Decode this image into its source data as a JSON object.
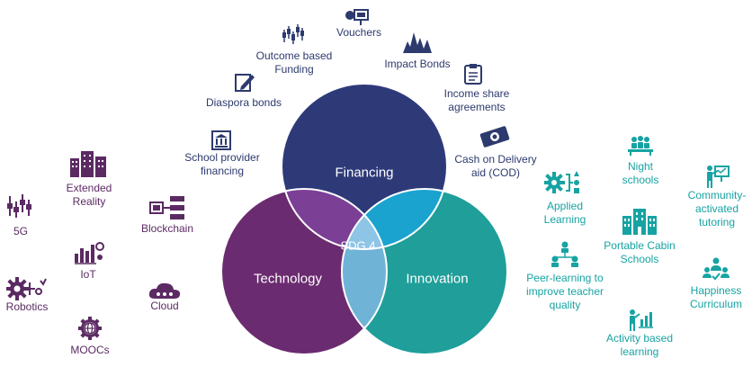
{
  "center": "SDG 4",
  "circles": {
    "financing": "Financing",
    "technology": "Technology",
    "innovation": "Innovation"
  },
  "financing_items": [
    "Vouchers",
    "Outcome based\nFunding",
    "Impact Bonds",
    "Diaspora bonds",
    "Income share\nagreements",
    "School provider\nfinancing",
    "Cash on Delivery\naid (COD)"
  ],
  "technology_items": [
    "Extended\nReality",
    "5G",
    "Blockchain",
    "IoT",
    "Robotics",
    "Cloud",
    "MOOCs"
  ],
  "innovation_items": [
    "Night\nschools",
    "Applied\nLearning",
    "Community-\nactivated\ntutoring",
    "Portable Cabin\nSchools",
    "Peer-learning to\nimprove teacher\nquality",
    "Happiness\nCurriculum",
    "Activity based\nlearning"
  ],
  "colors": {
    "navy": "#2e3a78",
    "purple": "#6b2b70",
    "teal": "#1f9e9a",
    "overlap_ft": "#7b3f96",
    "overlap_fi": "#1aa3cf",
    "overlap_ti": "#6fb3d6",
    "center": "#8ec4e6",
    "text_navy": "#2d3a6e",
    "text_purple": "#5b2a63",
    "text_teal": "#17a3a3"
  }
}
